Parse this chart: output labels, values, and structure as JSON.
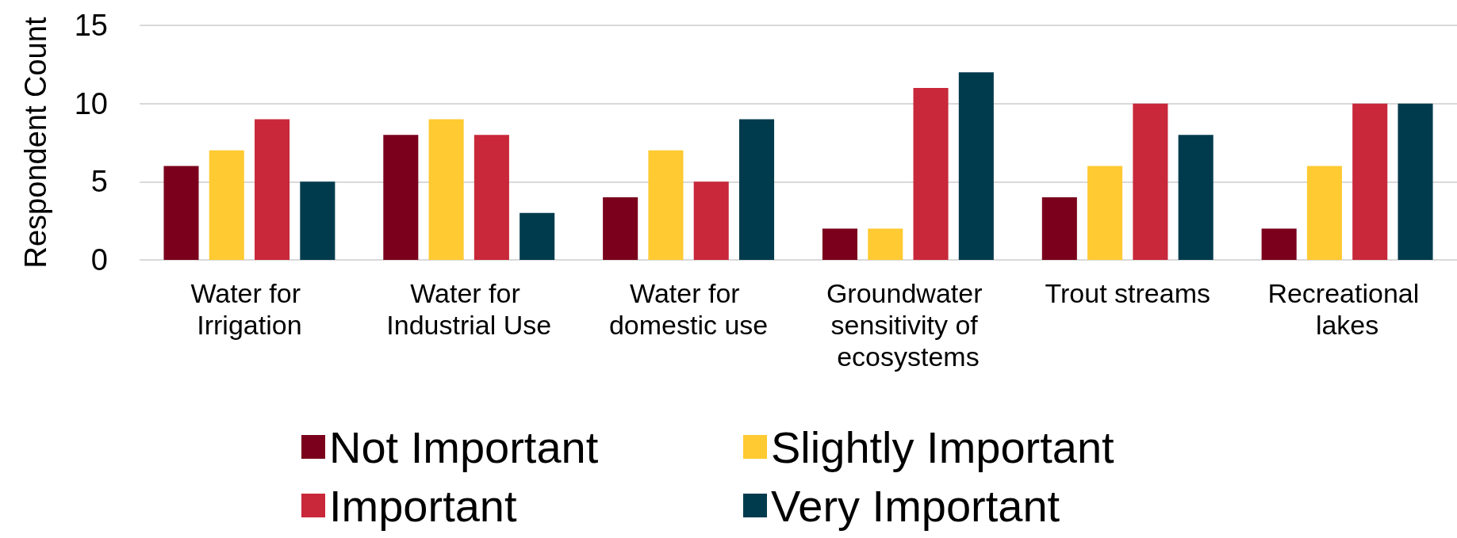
{
  "chart_data": {
    "type": "bar",
    "ylabel": "Respondent Count",
    "categories": [
      "Water for Irrigation",
      "Water for Industrial Use",
      "Water for domestic use",
      "Groundwater sensitivity of ecosystems",
      "Trout streams",
      "Recreational lakes"
    ],
    "series": [
      {
        "name": "Not Important",
        "color": "#7a001c",
        "values": [
          6,
          8,
          4,
          2,
          4,
          2
        ]
      },
      {
        "name": "Slightly Important",
        "color": "#ffca32",
        "values": [
          7,
          9,
          7,
          2,
          6,
          6
        ]
      },
      {
        "name": "Important",
        "color": "#c8283a",
        "values": [
          9,
          8,
          5,
          11,
          10,
          10
        ]
      },
      {
        "name": "Very Important",
        "color": "#003b4d",
        "values": [
          5,
          3,
          9,
          12,
          8,
          10
        ]
      }
    ],
    "ylim": [
      0,
      15
    ],
    "yticks": [
      0,
      5,
      10,
      15
    ],
    "grid": "y",
    "legend": "bottom"
  }
}
